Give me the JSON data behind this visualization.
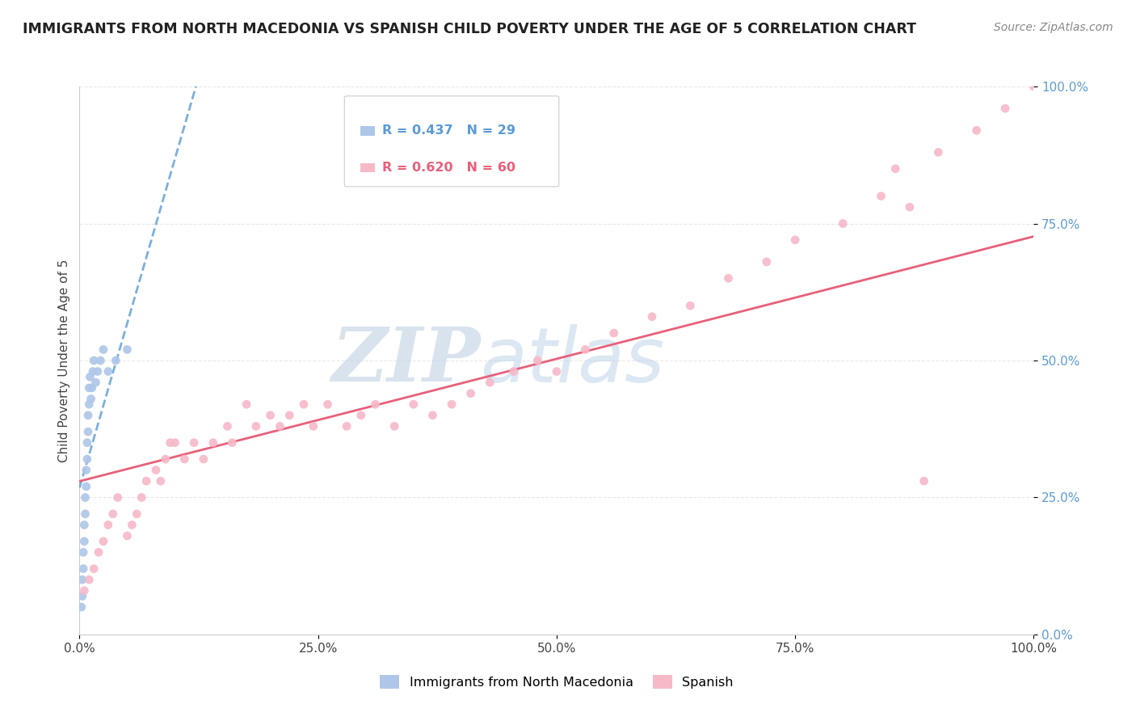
{
  "title": "IMMIGRANTS FROM NORTH MACEDONIA VS SPANISH CHILD POVERTY UNDER THE AGE OF 5 CORRELATION CHART",
  "source": "Source: ZipAtlas.com",
  "ylabel": "Child Poverty Under the Age of 5",
  "r_blue": 0.437,
  "n_blue": 29,
  "r_pink": 0.62,
  "n_pink": 60,
  "legend_labels": [
    "Immigrants from North Macedonia",
    "Spanish"
  ],
  "blue_color": "#aec6e8",
  "pink_color": "#f7b8c8",
  "blue_line_color": "#5b9bd5",
  "pink_line_color": "#e8607a",
  "watermark_zip": "ZIP",
  "watermark_atlas": "atlas",
  "background_color": "#ffffff",
  "grid_color": "#e8e8e8",
  "ytick_labels": [
    "0.0%",
    "25.0%",
    "50.0%",
    "75.0%",
    "100.0%"
  ],
  "ytick_values": [
    0,
    0.25,
    0.5,
    0.75,
    1.0
  ],
  "xtick_labels": [
    "0.0%",
    "25.0%",
    "50.0%",
    "75.0%",
    "100.0%"
  ],
  "xtick_values": [
    0,
    0.25,
    0.5,
    0.75,
    1.0
  ],
  "blue_x": [
    0.002,
    0.003,
    0.003,
    0.004,
    0.004,
    0.005,
    0.005,
    0.006,
    0.006,
    0.007,
    0.007,
    0.008,
    0.008,
    0.009,
    0.009,
    0.01,
    0.01,
    0.011,
    0.012,
    0.013,
    0.014,
    0.015,
    0.017,
    0.019,
    0.022,
    0.025,
    0.03,
    0.038,
    0.05
  ],
  "blue_y": [
    0.05,
    0.07,
    0.1,
    0.12,
    0.15,
    0.17,
    0.2,
    0.22,
    0.25,
    0.27,
    0.3,
    0.32,
    0.35,
    0.37,
    0.4,
    0.42,
    0.45,
    0.47,
    0.43,
    0.45,
    0.48,
    0.5,
    0.46,
    0.48,
    0.5,
    0.52,
    0.48,
    0.5,
    0.52
  ],
  "pink_x": [
    0.005,
    0.01,
    0.015,
    0.02,
    0.025,
    0.03,
    0.035,
    0.04,
    0.05,
    0.055,
    0.06,
    0.065,
    0.07,
    0.08,
    0.085,
    0.09,
    0.095,
    0.1,
    0.11,
    0.12,
    0.13,
    0.14,
    0.155,
    0.16,
    0.175,
    0.185,
    0.2,
    0.21,
    0.22,
    0.235,
    0.245,
    0.26,
    0.28,
    0.295,
    0.31,
    0.33,
    0.35,
    0.37,
    0.39,
    0.41,
    0.43,
    0.455,
    0.48,
    0.5,
    0.53,
    0.56,
    0.6,
    0.64,
    0.68,
    0.72,
    0.75,
    0.8,
    0.84,
    0.855,
    0.87,
    0.885,
    0.9,
    0.94,
    0.97,
    1.0
  ],
  "pink_y": [
    0.08,
    0.1,
    0.12,
    0.15,
    0.17,
    0.2,
    0.22,
    0.25,
    0.18,
    0.2,
    0.22,
    0.25,
    0.28,
    0.3,
    0.28,
    0.32,
    0.35,
    0.35,
    0.32,
    0.35,
    0.32,
    0.35,
    0.38,
    0.35,
    0.42,
    0.38,
    0.4,
    0.38,
    0.4,
    0.42,
    0.38,
    0.42,
    0.38,
    0.4,
    0.42,
    0.38,
    0.42,
    0.4,
    0.42,
    0.44,
    0.46,
    0.48,
    0.5,
    0.48,
    0.52,
    0.55,
    0.58,
    0.6,
    0.65,
    0.68,
    0.72,
    0.75,
    0.8,
    0.85,
    0.78,
    0.28,
    0.88,
    0.92,
    0.96,
    1.0
  ]
}
